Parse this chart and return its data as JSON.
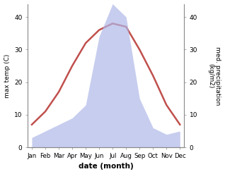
{
  "months": [
    "Jan",
    "Feb",
    "Mar",
    "Apr",
    "May",
    "Jun",
    "Jul",
    "Aug",
    "Sep",
    "Oct",
    "Nov",
    "Dec"
  ],
  "temp": [
    7,
    11,
    17,
    25,
    32,
    36,
    38,
    37,
    30,
    22,
    13,
    7
  ],
  "precip": [
    3,
    5,
    7,
    9,
    13,
    34,
    44,
    40,
    15,
    6,
    4,
    5
  ],
  "temp_color": "#c0504d",
  "precip_fill_color": "#b0b8e8",
  "precip_fill_alpha": 0.7,
  "xlabel": "date (month)",
  "ylabel_left": "max temp (C)",
  "ylabel_right": "med. precipitation\n(kg/m2)",
  "ylim_left": [
    0,
    44
  ],
  "ylim_right": [
    0,
    44
  ],
  "yticks_left": [
    0,
    10,
    20,
    30,
    40
  ],
  "yticks_right": [
    0,
    10,
    20,
    30,
    40
  ],
  "bg_color": "#ffffff",
  "spine_color": "#888888",
  "linewidth": 1.8
}
